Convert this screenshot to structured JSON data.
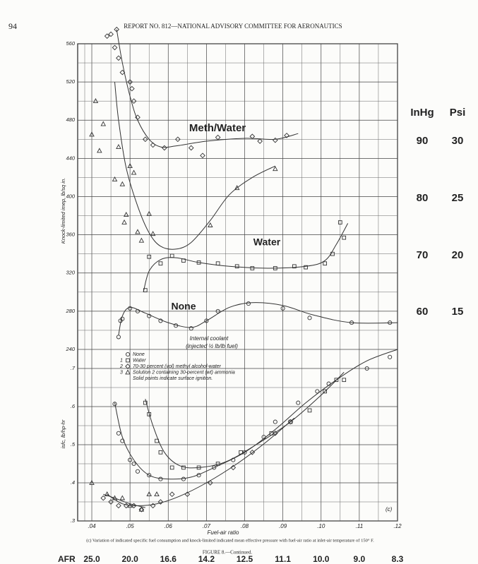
{
  "header": {
    "page_number": "94",
    "report_title": "REPORT NO. 812—NATIONAL ADVISORY COMMITTEE FOR AERONAUTICS"
  },
  "caption": "(c) Variation of indicated specific fuel consumption and knock-limited indicated mean effective pressure with fuel-air ratio at inlet-air temperature of 150° F.",
  "figure_label": "FIGURE 8.—Continued.",
  "boost_table": {
    "headers": [
      "InHg",
      "Psi"
    ],
    "rows": [
      [
        "90",
        "30"
      ],
      [
        "80",
        "25"
      ],
      [
        "70",
        "20"
      ],
      [
        "60",
        "15"
      ]
    ]
  },
  "afr_row": {
    "label": "AFR",
    "values": [
      "25.0",
      "20.0",
      "16.6",
      "14.2",
      "12.5",
      "11.1",
      "10.0",
      "9.0",
      "8.3"
    ]
  },
  "chart_data": [
    {
      "type": "scatter",
      "y_label": "Knock-limited imep, lb/sq in.",
      "xlim": [
        0.0363,
        0.12
      ],
      "ylim": [
        240,
        560
      ],
      "yticks": [
        240,
        280,
        320,
        360,
        400,
        440,
        480,
        520,
        560
      ],
      "grid": true,
      "annotations": [
        "Meth/Water",
        "Water",
        "None",
        "Internal coolant",
        "(injected ½ lb/lb fuel)"
      ],
      "series": [
        {
          "marker": "circle",
          "color": "#333333",
          "x": [
            0.047,
            0.0475,
            0.048,
            0.05,
            0.052,
            0.055,
            0.058,
            0.062,
            0.066,
            0.07,
            0.073,
            0.081,
            0.09,
            0.097,
            0.108,
            0.118
          ],
          "values": [
            253,
            270,
            272,
            283,
            280,
            275,
            270,
            265,
            262,
            270,
            280,
            288,
            283,
            273,
            268,
            268
          ]
        },
        {
          "marker": "square",
          "color": "#333333",
          "x": [
            0.054,
            0.055,
            0.058,
            0.061,
            0.064,
            0.068,
            0.073,
            0.078,
            0.082,
            0.088,
            0.093,
            0.096,
            0.101,
            0.103,
            0.105,
            0.106
          ],
          "values": [
            302,
            337,
            330,
            338,
            333,
            331,
            330,
            327,
            325,
            325,
            327,
            326,
            330,
            340,
            373,
            357
          ]
        },
        {
          "marker": "diamond",
          "color": "#333333",
          "x": [
            0.044,
            0.045,
            0.046,
            0.0465,
            0.047,
            0.048,
            0.05,
            0.0505,
            0.051,
            0.052,
            0.054,
            0.056,
            0.059,
            0.0625,
            0.066,
            0.069,
            0.073,
            0.082,
            0.084,
            0.088,
            0.091
          ],
          "values": [
            568,
            570,
            556,
            575,
            545,
            530,
            520,
            513,
            500,
            483,
            460,
            454,
            451,
            460,
            451,
            443,
            462,
            463,
            458,
            459,
            464
          ]
        },
        {
          "marker": "triangle",
          "color": "#333333",
          "x": [
            0.04,
            0.041,
            0.042,
            0.043,
            0.046,
            0.047,
            0.048,
            0.0485,
            0.049,
            0.05,
            0.051,
            0.052,
            0.053,
            0.055,
            0.056,
            0.071,
            0.078,
            0.088
          ],
          "values": [
            465,
            500,
            448,
            476,
            418,
            452,
            413,
            373,
            381,
            432,
            425,
            363,
            354,
            382,
            361,
            370,
            409,
            429
          ]
        }
      ],
      "curves": [
        {
          "color": "#333333",
          "x": [
            0.047,
            0.048,
            0.05,
            0.054,
            0.06,
            0.066,
            0.07,
            0.076,
            0.082,
            0.09,
            0.098,
            0.108,
            0.12
          ],
          "values": [
            255,
            275,
            284,
            278,
            268,
            263,
            270,
            284,
            289,
            286,
            276,
            268,
            268
          ]
        },
        {
          "color": "#333333",
          "x": [
            0.0535,
            0.055,
            0.058,
            0.062,
            0.068,
            0.076,
            0.086,
            0.096,
            0.101,
            0.104,
            0.107
          ],
          "values": [
            300,
            322,
            334,
            336,
            331,
            327,
            325,
            327,
            333,
            350,
            372
          ]
        },
        {
          "color": "#333333",
          "x": [
            0.0465,
            0.048,
            0.05,
            0.052,
            0.055,
            0.058,
            0.062,
            0.07,
            0.08,
            0.088,
            0.094
          ],
          "values": [
            575,
            540,
            505,
            480,
            460,
            452,
            453,
            458,
            461,
            460,
            466
          ]
        },
        {
          "color": "#333333",
          "x": [
            0.046,
            0.047,
            0.049,
            0.052,
            0.055,
            0.058,
            0.062,
            0.066,
            0.071,
            0.076,
            0.082,
            0.088
          ],
          "values": [
            520,
            480,
            430,
            390,
            362,
            348,
            345,
            352,
            375,
            402,
            420,
            432
          ]
        }
      ]
    },
    {
      "type": "scatter",
      "x_label": "Fuel-air ratio",
      "y_label": "isfc, lb/hp-hr",
      "xlim": [
        0.0363,
        0.12
      ],
      "ylim": [
        0.3,
        0.75
      ],
      "xticks": [
        {
          "value": 0.04,
          "label": ".04"
        },
        {
          "value": 0.05,
          "label": ".05"
        },
        {
          "value": 0.06,
          "label": ".06"
        },
        {
          "value": 0.07,
          "label": ".07"
        },
        {
          "value": 0.08,
          "label": ".08"
        },
        {
          "value": 0.09,
          "label": ".09"
        },
        {
          "value": 0.1,
          "label": ".10"
        },
        {
          "value": 0.11,
          "label": ".11"
        },
        {
          "value": 0.12,
          "label": ".12"
        }
      ],
      "yticks": [
        {
          "value": 0.3,
          "label": ".3"
        },
        {
          "value": 0.4,
          "label": ".4"
        },
        {
          "value": 0.5,
          "label": ".5"
        },
        {
          "value": 0.6,
          "label": ".6"
        },
        {
          "value": 0.7,
          "label": ".7"
        }
      ],
      "grid": true,
      "legend_note": "Solid points indicate surface ignition.",
      "panel_label": "(c)",
      "series": [
        {
          "name": "None",
          "marker": "circle",
          "color": "#333333",
          "x": [
            0.046,
            0.047,
            0.048,
            0.05,
            0.051,
            0.052,
            0.055,
            0.058,
            0.064,
            0.068,
            0.072,
            0.077,
            0.08,
            0.085,
            0.088,
            0.094,
            0.099,
            0.102,
            0.112,
            0.118
          ],
          "values": [
            0.607,
            0.53,
            0.51,
            0.46,
            0.45,
            0.43,
            0.42,
            0.41,
            0.41,
            0.42,
            0.44,
            0.46,
            0.48,
            0.52,
            0.56,
            0.61,
            0.64,
            0.66,
            0.7,
            0.73
          ]
        },
        {
          "key": "1",
          "name": "Water",
          "marker": "square",
          "color": "#333333",
          "x": [
            0.054,
            0.055,
            0.057,
            0.058,
            0.061,
            0.064,
            0.068,
            0.073,
            0.079,
            0.087,
            0.092,
            0.097,
            0.101,
            0.104,
            0.106
          ],
          "values": [
            0.61,
            0.58,
            0.51,
            0.48,
            0.44,
            0.44,
            0.44,
            0.45,
            0.48,
            0.53,
            0.56,
            0.59,
            0.64,
            0.67,
            0.67
          ]
        },
        {
          "key": "2",
          "name": "70-30 percent (vol) methyl alcohol-water",
          "marker": "diamond",
          "color": "#333333",
          "x": [
            0.043,
            0.045,
            0.047,
            0.049,
            0.051,
            0.053,
            0.056,
            0.058,
            0.061,
            0.065,
            0.071,
            0.077,
            0.082,
            0.088,
            0.092
          ],
          "values": [
            0.36,
            0.35,
            0.34,
            0.34,
            0.34,
            0.33,
            0.34,
            0.35,
            0.37,
            0.37,
            0.4,
            0.44,
            0.48,
            0.53,
            0.56
          ]
        },
        {
          "key": "3",
          "name": "Solution 2 containing 30-percent (wt) ammonia",
          "marker": "triangle",
          "color": "#333333",
          "x": [
            0.04,
            0.044,
            0.046,
            0.048,
            0.05,
            0.053,
            0.055,
            0.057
          ],
          "values": [
            0.4,
            0.37,
            0.36,
            0.36,
            0.34,
            0.33,
            0.37,
            0.37
          ]
        }
      ],
      "curves": [
        {
          "color": "#333333",
          "x": [
            0.046,
            0.048,
            0.051,
            0.055,
            0.06,
            0.066,
            0.072,
            0.08,
            0.088,
            0.096,
            0.104,
            0.112,
            0.12
          ],
          "values": [
            0.61,
            0.52,
            0.46,
            0.42,
            0.41,
            0.415,
            0.44,
            0.48,
            0.54,
            0.61,
            0.67,
            0.72,
            0.75
          ]
        },
        {
          "color": "#333333",
          "x": [
            0.054,
            0.056,
            0.059,
            0.063,
            0.068,
            0.075,
            0.083,
            0.092,
            0.1,
            0.106
          ],
          "values": [
            0.62,
            0.55,
            0.48,
            0.445,
            0.44,
            0.455,
            0.5,
            0.56,
            0.63,
            0.69
          ]
        },
        {
          "color": "#333333",
          "x": [
            0.044,
            0.048,
            0.052,
            0.057,
            0.063,
            0.07,
            0.078,
            0.086,
            0.093
          ],
          "values": [
            0.37,
            0.345,
            0.34,
            0.345,
            0.365,
            0.4,
            0.45,
            0.51,
            0.57
          ]
        },
        {
          "color": "#333333",
          "x": [
            0.043,
            0.046,
            0.05,
            0.054
          ],
          "values": [
            0.37,
            0.36,
            0.345,
            0.335
          ]
        }
      ]
    }
  ]
}
